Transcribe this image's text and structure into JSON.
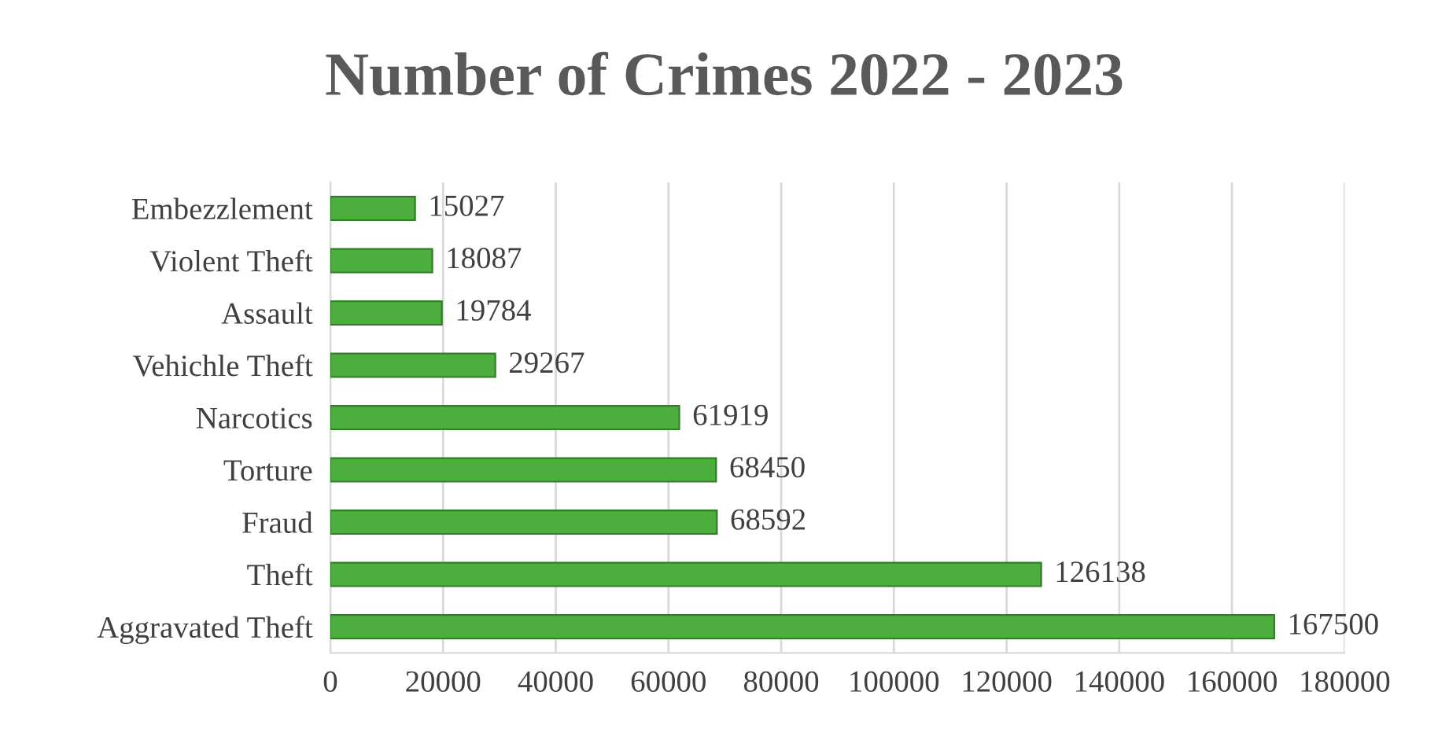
{
  "chart_data": {
    "type": "bar",
    "orientation": "horizontal",
    "title": "Number of Crimes 2022 - 2023",
    "categories": [
      "Embezzlement",
      "Violent Theft",
      "Assault",
      "Vehichle Theft",
      "Narcotics",
      "Torture",
      "Fraud",
      "Theft",
      "Aggravated Theft"
    ],
    "values": [
      15027,
      18087,
      19784,
      29267,
      61919,
      68450,
      68592,
      126138,
      167500
    ],
    "color": "#4cae3c",
    "xlim": [
      0,
      180000
    ],
    "xticks": [
      0,
      20000,
      40000,
      60000,
      80000,
      100000,
      120000,
      140000,
      160000,
      180000
    ],
    "grid": "x",
    "data_labels": true
  }
}
